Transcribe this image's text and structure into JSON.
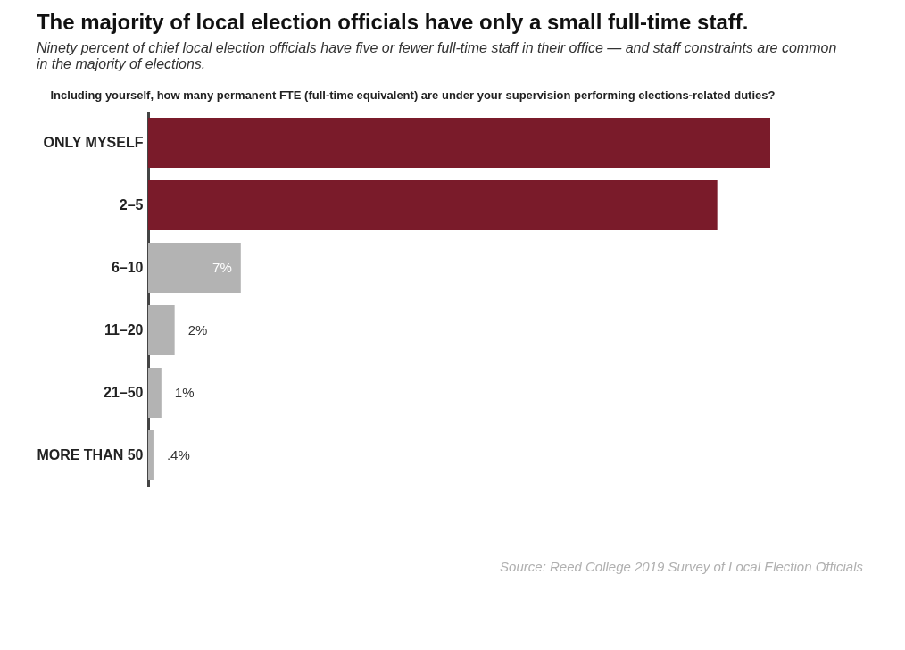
{
  "chart_data": {
    "type": "bar",
    "orientation": "horizontal",
    "title": "The majority of local election officials have only a small full-time staff.",
    "subtitle": "Ninety percent of chief local election officials have five or fewer full-time staff in their office — and staff constraints are common in the majority of elections.",
    "xlabel": "Including yourself, how many permanent FTE (full-time equivalent) are under your supervision performing elections-related duties?",
    "categories": [
      "ONLY MYSELF",
      "2–5",
      "6–10",
      "11–20",
      "21–50",
      "MORE THAN 50"
    ],
    "values": [
      47,
      43,
      7,
      2,
      1,
      0.4
    ],
    "colors": [
      "#7a1b2a",
      "#7a1b2a",
      "#b3b3b3",
      "#b3b3b3",
      "#b3b3b3",
      "#b3b3b3"
    ],
    "value_labels": [
      null,
      null,
      "7%",
      "2%",
      "1%",
      ".4%"
    ],
    "annotations": [
      "Source: Reed College 2019 Survey of Local Election Officials"
    ]
  }
}
